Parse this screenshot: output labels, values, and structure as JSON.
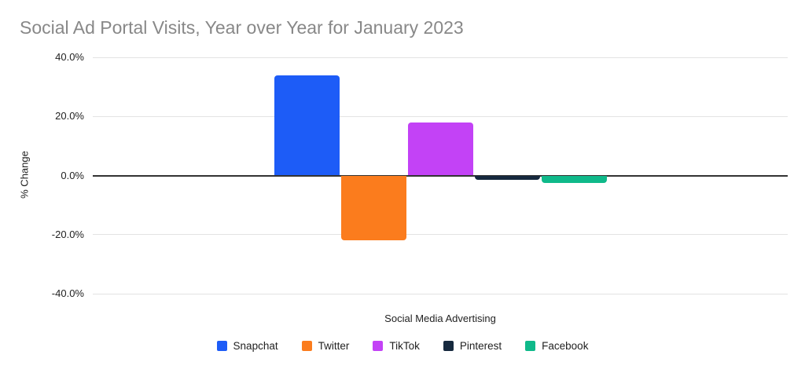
{
  "title": "Social Ad Portal Visits, Year over Year for January 2023",
  "chart_data": {
    "type": "bar",
    "title": "Social Ad Portal Visits, Year over Year for January 2023",
    "xlabel": "Social Media Advertising",
    "ylabel": "% Change",
    "ylim": [
      -40,
      40
    ],
    "grid": true,
    "legend_position": "bottom",
    "yticks": [
      {
        "value": 40,
        "label": "40.0%"
      },
      {
        "value": 20,
        "label": "20.0%"
      },
      {
        "value": 0,
        "label": "0.0%"
      },
      {
        "value": -20,
        "label": "-20.0%"
      },
      {
        "value": -40,
        "label": "-40.0%"
      }
    ],
    "series": [
      {
        "name": "Snapchat",
        "value": 34.0,
        "color": "#1d5cf7"
      },
      {
        "name": "Twitter",
        "value": -22.0,
        "color": "#fb7c1d"
      },
      {
        "name": "TikTok",
        "value": 18.0,
        "color": "#c342f6"
      },
      {
        "name": "Pinterest",
        "value": -1.5,
        "color": "#16293e"
      },
      {
        "name": "Facebook",
        "value": -2.6,
        "color": "#0fb98a"
      }
    ]
  },
  "colors": {
    "title_text": "#888888",
    "axis_text": "#222222",
    "gridline": "#e3e3e3",
    "zero_line": "#333333",
    "background": "#ffffff"
  }
}
